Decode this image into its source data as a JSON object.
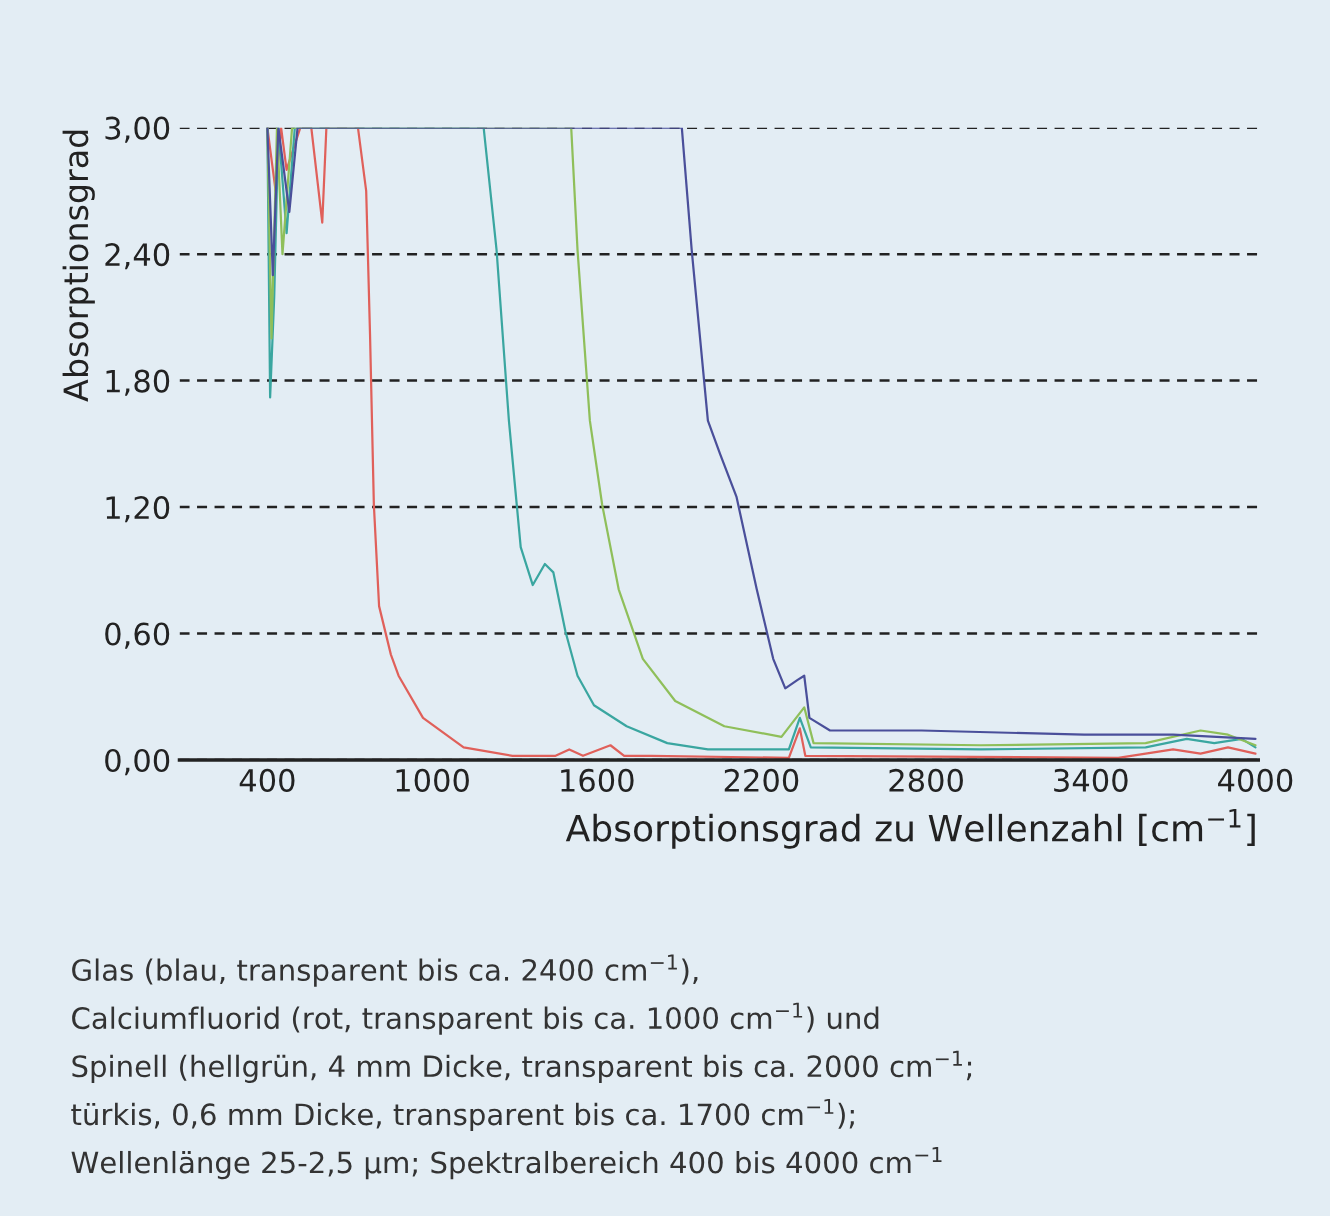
{
  "chart_data": {
    "type": "line",
    "xlabel": "Absorptionsgrad zu Wellenzahl [cm$^{−1}$]",
    "ylabel": "Absorptionsgrad",
    "xlim": [
      80,
      4010
    ],
    "xticks": [
      400,
      1000,
      1600,
      2200,
      2800,
      3400,
      4000
    ],
    "ylim": [
      0,
      3
    ],
    "yticks": [
      {
        "value": 0,
        "label": "0,00"
      },
      {
        "value": 0.6,
        "label": "0,60"
      },
      {
        "value": 1.2,
        "label": "1,20"
      },
      {
        "value": 1.8,
        "label": "1,80"
      },
      {
        "value": 2.4,
        "label": "2,40"
      },
      {
        "value": 3,
        "label": "3,00"
      }
    ],
    "grid": "y",
    "line_style": "solid",
    "annotations": [
      "Glas (blau, transparent bis ca. 2400 cm$^{−1}$),\nCalciumfluorid (rot, transparent bis ca. 1000 cm$^{−1}$) und\nSpinell (hellgrün, 4 mm Dicke, transparent bis ca. 2000 cm$^{−1}$;\ntürkis, 0,6 mm Dicke, transparent bis ca. 1700 cm$^{−1}$);\nWellenlänge 25-2,5 µm; Spektralbereich 400 bis 4000 cm$^{−1}$"
    ],
    "series": [
      {
        "color": "#e0605a",
        "x": [
          400,
          430,
          450,
          470,
          520,
          560,
          600,
          615,
          640,
          730,
          760,
          774,
          788,
          807,
          850,
          878,
          967,
          1115,
          1293,
          1450,
          1500,
          1550,
          1650,
          1700,
          1800,
          2300,
          2340,
          2360,
          3500,
          3700,
          3800,
          3900,
          4000
        ],
        "values": [
          3.0,
          2.7,
          3.0,
          2.8,
          3.0,
          3.0,
          2.55,
          3.0,
          3.0,
          3.0,
          2.7,
          2.02,
          1.21,
          0.73,
          0.5,
          0.4,
          0.2,
          0.06,
          0.02,
          0.02,
          0.05,
          0.02,
          0.07,
          0.02,
          0.02,
          0.01,
          0.15,
          0.02,
          0.01,
          0.05,
          0.03,
          0.06,
          0.03
        ]
      },
      {
        "color": "#3aa6a0",
        "x": [
          400,
          410,
          425,
          440,
          470,
          500,
          560,
          1188,
          1235,
          1280,
          1323,
          1367,
          1411,
          1442,
          1486,
          1530,
          1590,
          1709,
          1857,
          2005,
          2300,
          2340,
          2380,
          3000,
          3600,
          3750,
          3850,
          3950,
          4000
        ],
        "values": [
          3.0,
          1.72,
          2.2,
          3.0,
          2.5,
          3.0,
          3.0,
          3.0,
          2.42,
          1.61,
          1.01,
          0.83,
          0.93,
          0.89,
          0.61,
          0.4,
          0.26,
          0.16,
          0.08,
          0.05,
          0.05,
          0.2,
          0.06,
          0.05,
          0.06,
          0.1,
          0.08,
          0.1,
          0.06
        ]
      },
      {
        "color": "#8fbf5a",
        "x": [
          400,
          415,
          435,
          455,
          490,
          520,
          1507,
          1530,
          1575,
          1620,
          1680,
          1768,
          1886,
          2065,
          2273,
          2356,
          2390,
          3000,
          3600,
          3800,
          3900,
          4000
        ],
        "values": [
          3.0,
          2.0,
          3.0,
          2.4,
          3.0,
          3.0,
          3.0,
          2.42,
          1.61,
          1.21,
          0.81,
          0.48,
          0.28,
          0.16,
          0.11,
          0.25,
          0.08,
          0.07,
          0.08,
          0.14,
          0.12,
          0.07
        ]
      },
      {
        "color": "#4a4f9a",
        "x": [
          400,
          420,
          440,
          480,
          510,
          1910,
          1946,
          2005,
          2050,
          2109,
          2183,
          2243,
          2287,
          2332,
          2356,
          2375,
          2450,
          2784,
          3376,
          3700,
          4000
        ],
        "values": [
          3.0,
          2.3,
          3.0,
          2.6,
          3.0,
          3.0,
          2.42,
          1.61,
          1.45,
          1.25,
          0.81,
          0.48,
          0.34,
          0.38,
          0.4,
          0.2,
          0.14,
          0.14,
          0.12,
          0.12,
          0.1
        ]
      }
    ]
  }
}
